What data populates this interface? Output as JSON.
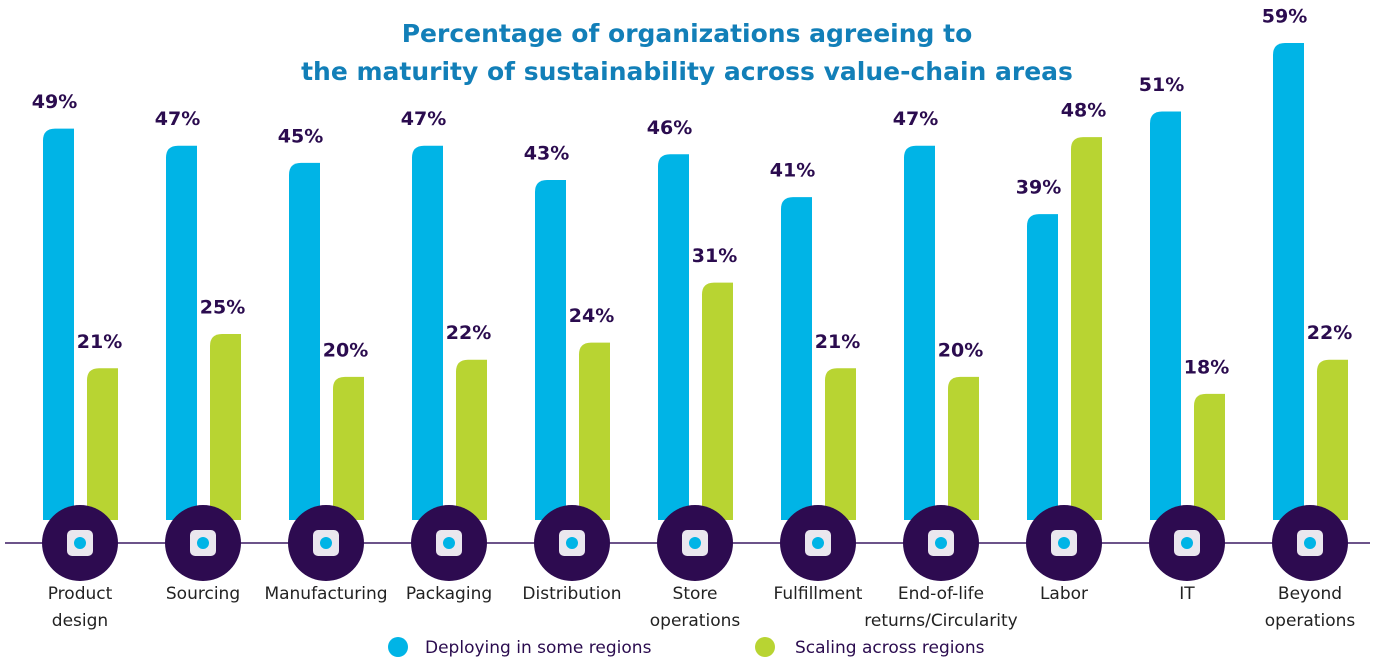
{
  "chart_data": {
    "type": "bar",
    "title": [
      "Percentage of organizations agreeing to",
      "the maturity of sustainability across value-chain areas"
    ],
    "categories": [
      [
        "Product",
        "design"
      ],
      [
        "Sourcing"
      ],
      [
        "Manufacturing"
      ],
      [
        "Packaging"
      ],
      [
        "Distribution"
      ],
      [
        "Store",
        "operations"
      ],
      [
        "Fulfillment"
      ],
      [
        "End-of-life",
        "returns/Circularity"
      ],
      [
        "Labor"
      ],
      [
        "IT"
      ],
      [
        "Beyond",
        "operations"
      ]
    ],
    "series": [
      {
        "name": "Deploying in some regions",
        "color": "#00b4e6",
        "values": [
          49,
          47,
          45,
          47,
          43,
          46,
          41,
          47,
          39,
          51,
          59
        ],
        "value_labels": [
          "49%",
          "47%",
          "45%",
          "47%",
          "43%",
          "46%",
          "41%",
          "47%",
          "39%",
          "51%",
          "59%"
        ]
      },
      {
        "name": "Scaling across regions",
        "color": "#b8d432",
        "values": [
          21,
          25,
          20,
          22,
          24,
          31,
          21,
          20,
          48,
          18,
          22
        ],
        "value_labels": [
          "21%",
          "25%",
          "20%",
          "22%",
          "24%",
          "31%",
          "21%",
          "20%",
          "48%",
          "18%",
          "22%"
        ]
      }
    ]
  }
}
